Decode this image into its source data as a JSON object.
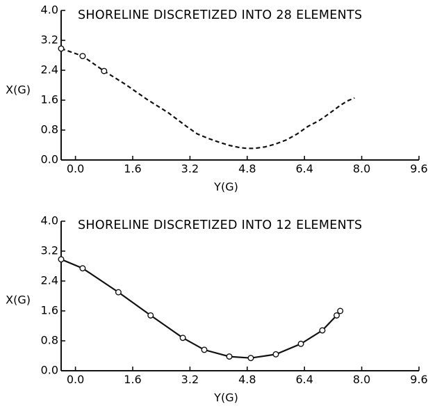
{
  "chart_data": [
    {
      "type": "line",
      "title": "SHORELINE DISCRETIZED INTO 28 ELEMENTS",
      "xlabel": "Y(G)",
      "ylabel": "X(G)",
      "xlim": [
        -0.4,
        9.6
      ],
      "ylim": [
        0.0,
        4.0
      ],
      "x_tick_labels": [
        "0.0",
        "1.6",
        "3.2",
        "4.8",
        "6.4",
        "8.0",
        "9.6"
      ],
      "x_ticks": [
        0.0,
        1.6,
        3.2,
        4.8,
        6.4,
        8.0,
        9.6
      ],
      "y_tick_labels": [
        "0.0",
        "0.8",
        "1.6",
        "2.4",
        "3.2",
        "4.0"
      ],
      "y_ticks": [
        0.0,
        0.8,
        1.6,
        2.4,
        3.2,
        4.0
      ],
      "grid": false,
      "series": [
        {
          "x": [
            -0.4,
            0.2,
            0.8,
            1.4,
            2.0,
            2.6,
            3.1,
            3.4,
            3.7,
            4.0,
            4.3,
            4.6,
            4.8,
            5.0,
            5.3,
            5.6,
            5.9,
            6.2,
            6.5,
            6.8,
            7.0,
            7.2,
            7.4,
            7.6,
            7.8
          ],
          "y": [
            2.98,
            2.78,
            2.38,
            2.02,
            1.62,
            1.26,
            0.9,
            0.7,
            0.58,
            0.48,
            0.39,
            0.33,
            0.31,
            0.31,
            0.35,
            0.43,
            0.54,
            0.7,
            0.9,
            1.05,
            1.18,
            1.32,
            1.46,
            1.58,
            1.66
          ],
          "markers": [
            -0.4,
            0.2,
            0.8
          ]
        }
      ]
    },
    {
      "type": "line",
      "title": "SHORELINE DISCRETIZED INTO 12 ELEMENTS",
      "xlabel": "Y(G)",
      "ylabel": "X(G)",
      "xlim": [
        -0.4,
        9.6
      ],
      "ylim": [
        0.0,
        4.0
      ],
      "x_tick_labels": [
        "0.0",
        "1.6",
        "3.2",
        "4.8",
        "6.4",
        "8.0",
        "9.6"
      ],
      "x_ticks": [
        0.0,
        1.6,
        3.2,
        4.8,
        6.4,
        8.0,
        9.6
      ],
      "y_tick_labels": [
        "0.0",
        "0.8",
        "1.6",
        "2.4",
        "3.2",
        "4.0"
      ],
      "y_ticks": [
        0.0,
        0.8,
        1.6,
        2.4,
        3.2,
        4.0
      ],
      "grid": false,
      "series": [
        {
          "x": [
            -0.4,
            0.2,
            1.2,
            2.1,
            3.0,
            3.6,
            4.3,
            4.9,
            5.6,
            6.3,
            6.9,
            7.3,
            7.4
          ],
          "y": [
            2.98,
            2.74,
            2.1,
            1.48,
            0.88,
            0.56,
            0.38,
            0.34,
            0.44,
            0.72,
            1.08,
            1.48,
            1.6
          ],
          "markers": [
            -0.4,
            0.2,
            1.2,
            2.1,
            3.0,
            3.6,
            4.3,
            4.9,
            5.6,
            6.3,
            6.9,
            7.3,
            7.4
          ]
        }
      ]
    }
  ]
}
